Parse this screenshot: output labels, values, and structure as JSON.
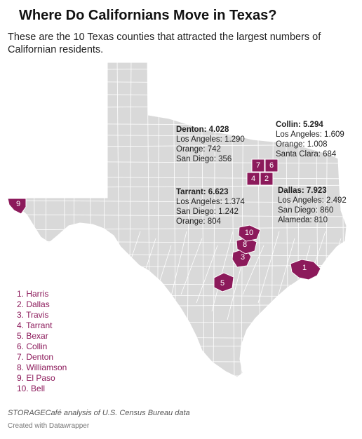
{
  "title": "Where Do Californians Move in Texas?",
  "subtitle": "These are the 10 Texas counties that attracted the largest numbers of Californian residents.",
  "colors": {
    "highlight": "#8c1a5b",
    "land": "#d9d9d9",
    "county_border": "#ffffff"
  },
  "callouts": {
    "denton": {
      "head": "Denton: 4.028",
      "lines": [
        "Los Angeles: 1.290",
        "Orange: 742",
        "San Diego: 356"
      ]
    },
    "collin": {
      "head": "Collin: 5.294",
      "lines": [
        "Los Angeles: 1.609",
        "Orange: 1.008",
        "Santa Clara: 684"
      ]
    },
    "tarrant": {
      "head": "Tarrant: 6.623",
      "lines": [
        "Los Angeles: 1.374",
        "San Diego: 1.242",
        "Orange: 804"
      ]
    },
    "dallas": {
      "head": "Dallas: 7.923",
      "lines": [
        "Los Angeles: 2.492",
        "San Diego: 860",
        "Alameda: 810"
      ]
    }
  },
  "counties": [
    {
      "rank": "1",
      "name": "Harris"
    },
    {
      "rank": "2",
      "name": "Dallas"
    },
    {
      "rank": "3",
      "name": "Travis"
    },
    {
      "rank": "4",
      "name": "Tarrant"
    },
    {
      "rank": "5",
      "name": "Bexar"
    },
    {
      "rank": "6",
      "name": "Collin"
    },
    {
      "rank": "7",
      "name": "Denton"
    },
    {
      "rank": "8",
      "name": "Williamson"
    },
    {
      "rank": "9",
      "name": "El Paso"
    },
    {
      "rank": "10",
      "name": "Bell"
    }
  ],
  "legend": [
    "1. Harris",
    "2. Dallas",
    "3. Travis",
    "4. Tarrant",
    "5. Bexar",
    "6. Collin",
    "7. Denton",
    "8. Williamson",
    "9. El Paso",
    "10. Bell"
  ],
  "source": "STORAGECafé analysis of U.S. Census Bureau data",
  "credit": "Created with Datawrapper"
}
